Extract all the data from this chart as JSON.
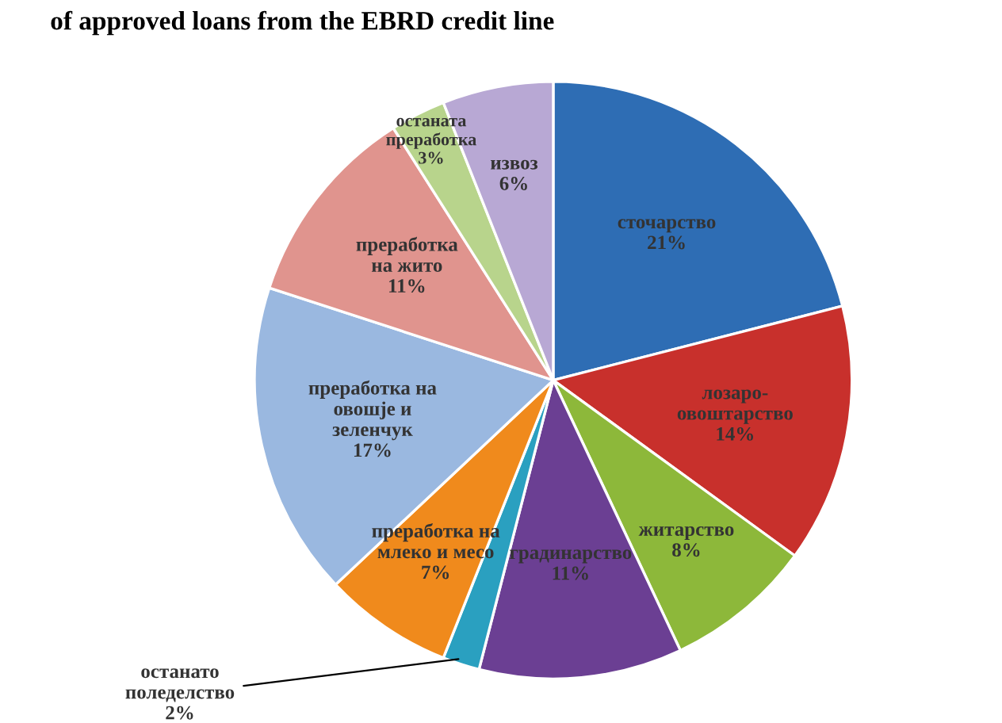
{
  "chart_data": {
    "type": "pie",
    "categories": [
      "сточарство",
      "лозаро-\nовоштарство",
      "житарство",
      "градинарство",
      "останато\nполеделство",
      "преработка на\nмлеко и месо",
      "преработка на\nовошје и\nзеленчук",
      "преработка\nна жито",
      "останата\nпреработка",
      "извоз"
    ],
    "values": [
      21,
      14,
      8,
      11,
      2,
      7,
      17,
      11,
      3,
      6
    ],
    "value_labels": [
      "21%",
      "14%",
      "8%",
      "11%",
      "2%",
      "7%",
      "17%",
      "11%",
      "3%",
      "6%"
    ],
    "colors": [
      "#2e6db4",
      "#c8302c",
      "#8db83a",
      "#6b3f93",
      "#2aa0c0",
      "#f08a1c",
      "#9ab8e0",
      "#e0948e",
      "#b8d48c",
      "#b8a8d4"
    ],
    "annotations": [
      "of approved loans from the EBRD credit line"
    ]
  }
}
